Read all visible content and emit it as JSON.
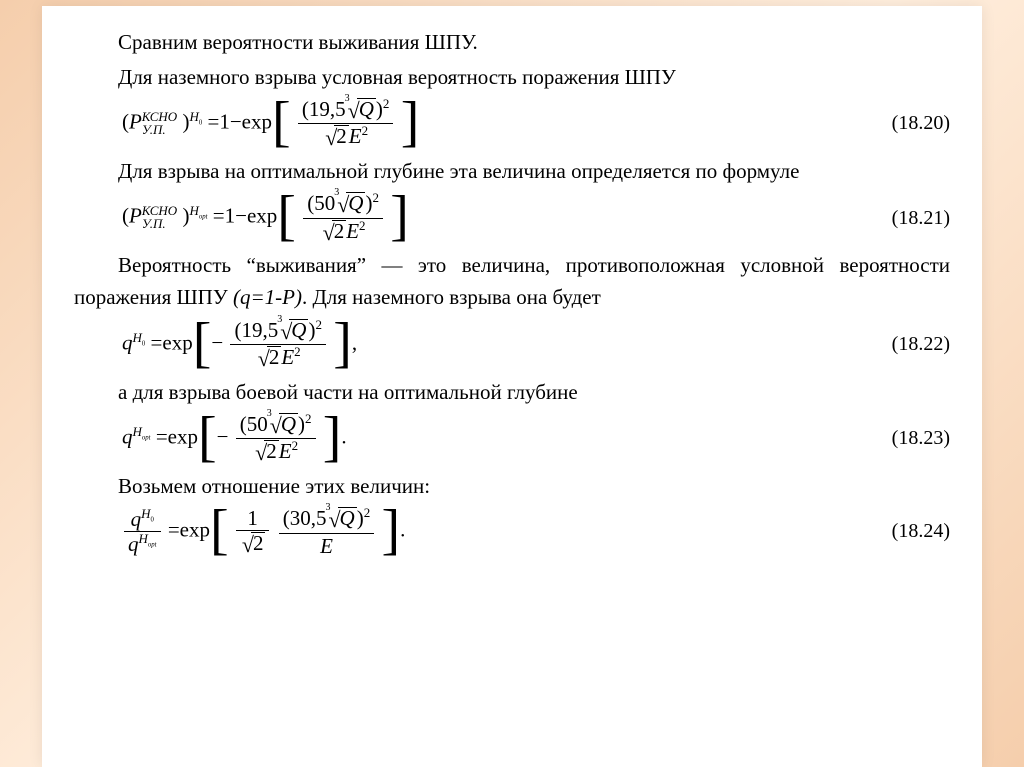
{
  "colors": {
    "text": "#000000",
    "page_bg": "#ffffff",
    "grad_a": "#f5ceac",
    "grad_b": "#ffeedd"
  },
  "typography": {
    "family": "Times New Roman",
    "size_pt": 21,
    "eq_num_size_pt": 20
  },
  "p": {
    "l1": "Сравним вероятности выживания ШПУ.",
    "l2": "Для наземного взрыва условная вероятность поражения ШПУ",
    "l3": "Для взрыва на оптимальной глубине эта величина определяется по формуле",
    "l4a": "Вероятность “выживания” — это величина, противоположная условной вероятности поражения ШПУ ",
    "l4b": "(q=1-P)",
    "l4c": ". Для наземного взрыва она будет",
    "l5": "а для взрыва боевой части на оптимальной глубине",
    "l6": "Возьмем отношение этих величин:"
  },
  "eq": {
    "e20": {
      "num": "(18.20)",
      "coef": "19,5",
      "P_sup": "КСНО",
      "P_sub": "У.П.",
      "exp": "H",
      "exp_sub": "0",
      "sign": "=1−exp"
    },
    "e21": {
      "num": "(18.21)",
      "coef": "50",
      "P_sup": "КСНО",
      "P_sub": "У.П.",
      "exp": "H",
      "exp_sub": "opt",
      "sign": "=1−exp"
    },
    "e22": {
      "num": "(18.22)",
      "coef": "19,5",
      "lhs": "q",
      "exp": "H",
      "exp_sub": "0",
      "sign": "=exp",
      "neg": "−",
      "tail": ","
    },
    "e23": {
      "num": "(18.23)",
      "coef": "50",
      "lhs": "q",
      "exp": "H",
      "exp_sub": "opt",
      "sign": "=exp",
      "neg": "−",
      "tail": "."
    },
    "e24": {
      "num": "(18.24)",
      "coef": "30,5",
      "sign": "=exp",
      "tail": "."
    }
  },
  "sym": {
    "Q": "Q",
    "E": "E",
    "sqrt2": "2",
    "cube": "3",
    "sq": "2"
  }
}
